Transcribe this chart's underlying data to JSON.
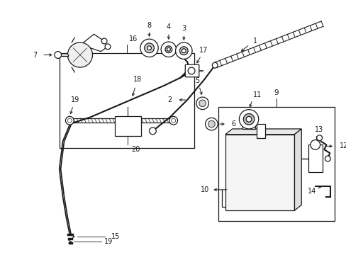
{
  "bg_color": "#ffffff",
  "line_color": "#1a1a1a",
  "fig_width": 4.89,
  "fig_height": 3.6,
  "dpi": 100,
  "xlim": [
    0,
    489
  ],
  "ylim": [
    0,
    360
  ]
}
